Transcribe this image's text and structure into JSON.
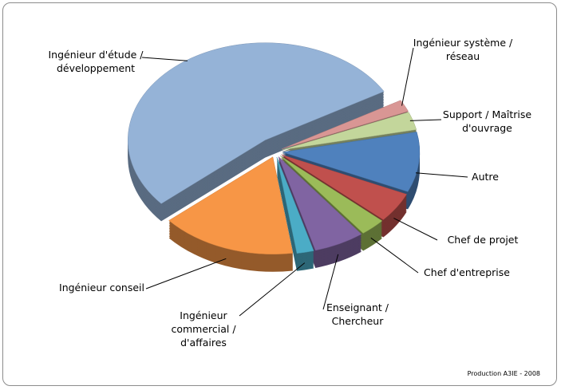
{
  "chart_data": {
    "type": "pie",
    "categories": [
      "Ingénieur système / réseau",
      "Support / Maîtrise d'ouvrage",
      "Autre",
      "Chef de projet",
      "Chef d'entreprise",
      "Enseignant / Chercheur",
      "Ingénieur commercial / d'affaires",
      "Ingénieur conseil",
      "Ingénieur d'étude / développement"
    ],
    "values": [
      2,
      3,
      10,
      5,
      3,
      6,
      2,
      16,
      53
    ],
    "colors": [
      "#d99694",
      "#c3d69b",
      "#4f81bd",
      "#c0504d",
      "#9bbb59",
      "#8064a2",
      "#4bacc6",
      "#f79646",
      "#95b3d7"
    ],
    "source": "Production A3IE - 2008"
  }
}
